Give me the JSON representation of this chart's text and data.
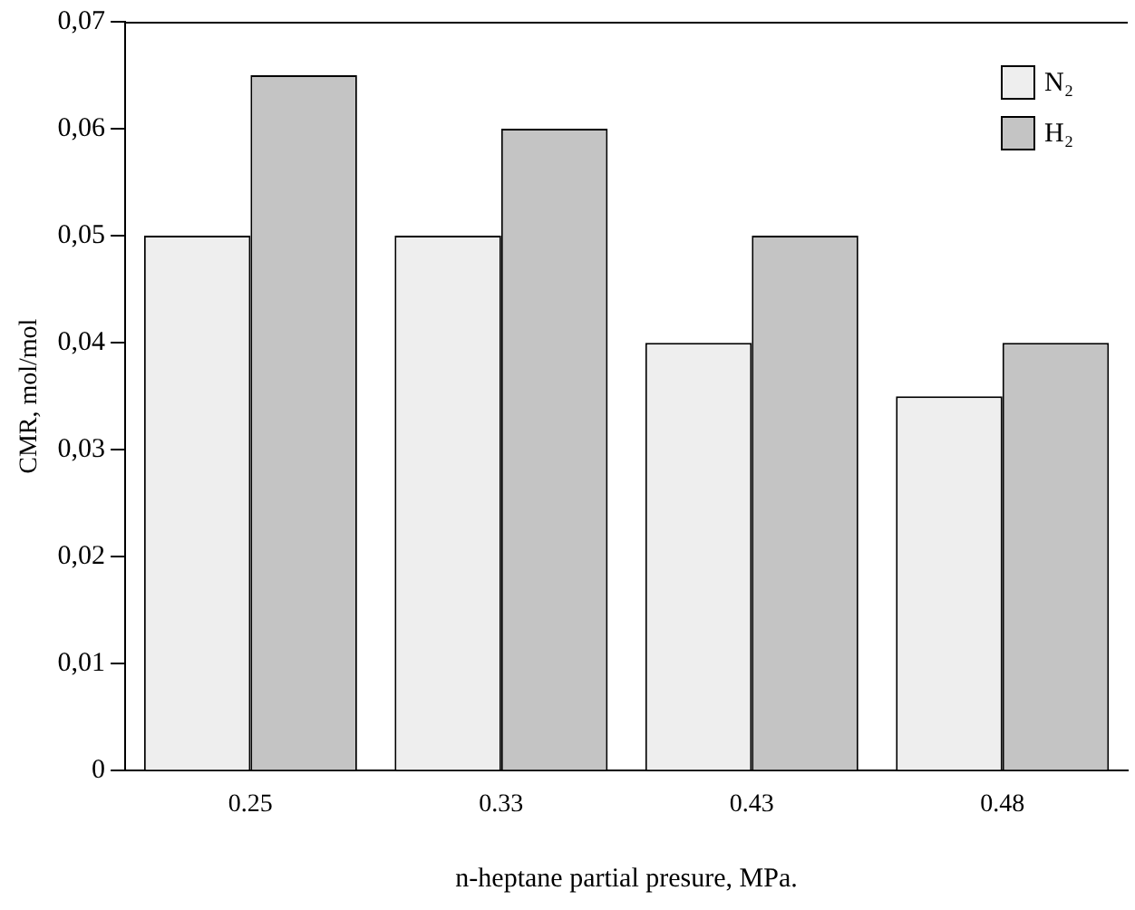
{
  "chart_data": {
    "type": "bar",
    "xlabel": "n-heptane partial presure, MPa.",
    "ylabel": "CMR, mol/mol",
    "categories": [
      "0.25",
      "0.33",
      "0.43",
      "0.48"
    ],
    "series": [
      {
        "name": "N₂",
        "color": "#eeeeee",
        "values": [
          0.05,
          0.05,
          0.04,
          0.035
        ]
      },
      {
        "name": "H₂",
        "color": "#c4c4c4",
        "values": [
          0.065,
          0.06,
          0.05,
          0.04
        ]
      }
    ],
    "ylim": [
      0,
      0.07
    ],
    "yticks": [
      0,
      {
        "value": 0.01,
        "label": "0,01"
      },
      {
        "value": 0.02,
        "label": "0,02"
      },
      {
        "value": 0.03,
        "label": "0,03"
      },
      {
        "value": 0.04,
        "label": "0,04"
      },
      {
        "value": 0.05,
        "label": "0,05"
      },
      {
        "value": 0.06,
        "label": "0,06"
      },
      {
        "value": 0.07,
        "label": "0,07"
      }
    ],
    "grid": false,
    "legend": "top right"
  }
}
